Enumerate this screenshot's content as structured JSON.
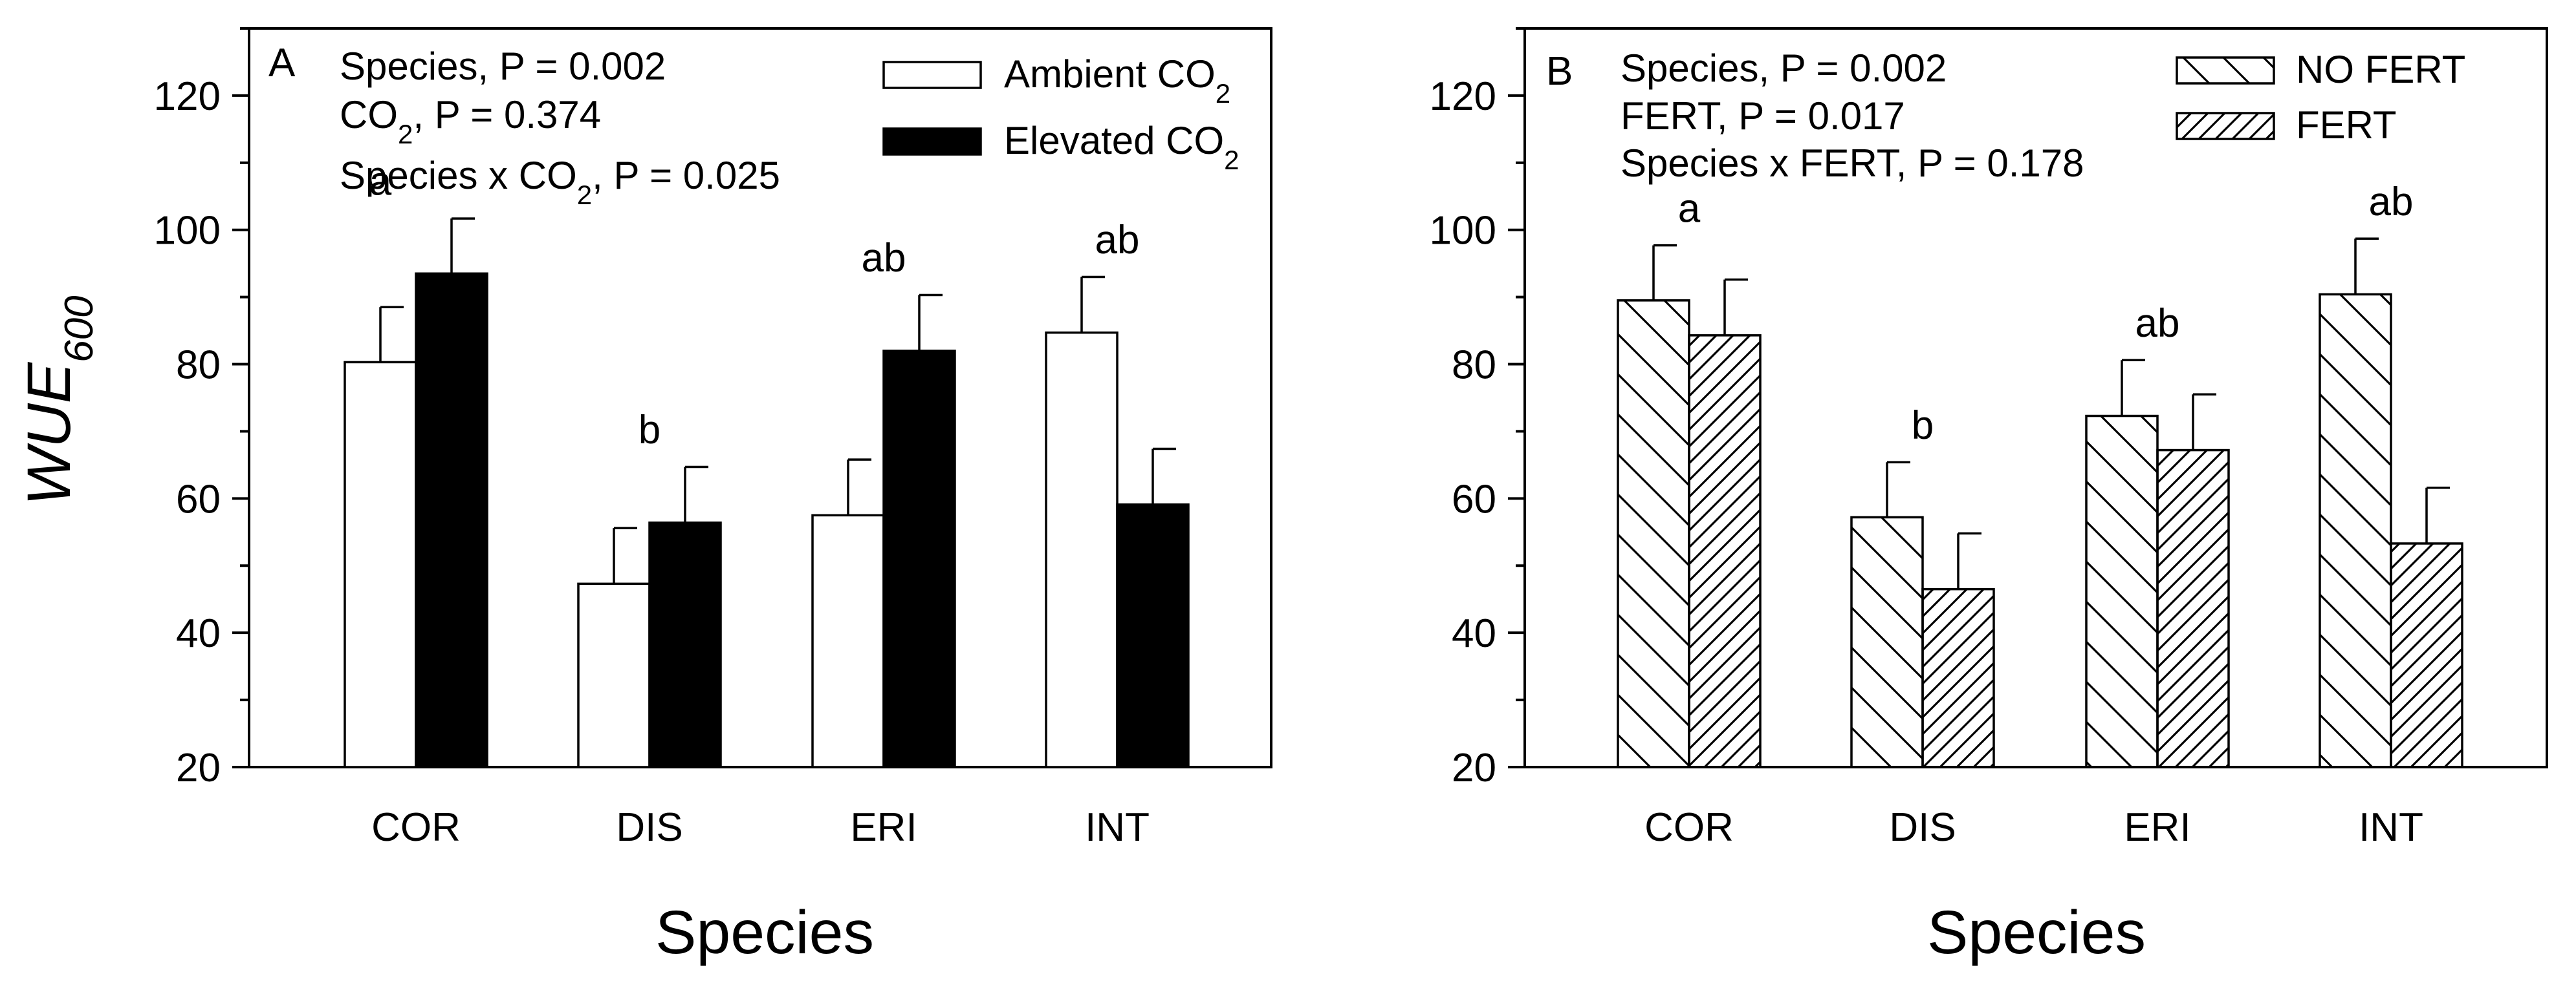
{
  "chart_data": [
    {
      "type": "bar",
      "panel_label": "A",
      "categories": [
        "COR",
        "DIS",
        "ERI",
        "INT"
      ],
      "series": [
        {
          "name": "Ambient CO2",
          "fill": "#ffffff",
          "pattern": "none",
          "values": [
            80.3,
            47.3,
            57.5,
            84.7
          ],
          "errors": [
            8.2,
            8.3,
            8.3,
            8.3
          ]
        },
        {
          "name": "Elevated CO2",
          "fill": "#000000",
          "pattern": "none",
          "values": [
            93.5,
            56.4,
            82.0,
            59.1
          ],
          "errors": [
            8.2,
            8.3,
            8.3,
            8.3
          ]
        }
      ],
      "sig_letters": [
        "a",
        "b",
        "ab",
        "ab"
      ],
      "stats": [
        "Species, P = 0.002",
        "CO2, P = 0.374",
        "Species x CO2, P = 0.025"
      ],
      "xlabel": "Species",
      "ylabel": "WUE600",
      "ylim": [
        20,
        130
      ],
      "yticks": [
        20,
        40,
        60,
        80,
        100,
        120
      ],
      "legend_placement": "top-right",
      "grid": false
    },
    {
      "type": "bar",
      "panel_label": "B",
      "categories": [
        "COR",
        "DIS",
        "ERI",
        "INT"
      ],
      "series": [
        {
          "name": "NO FERT",
          "fill": "#ffffff",
          "pattern": "back-diagonal",
          "values": [
            89.5,
            57.2,
            72.3,
            90.4
          ],
          "errors": [
            8.2,
            8.2,
            8.3,
            8.3
          ]
        },
        {
          "name": "FERT",
          "fill": "#ffffff",
          "pattern": "forward-diagonal",
          "values": [
            84.3,
            46.5,
            67.2,
            53.3
          ],
          "errors": [
            8.3,
            8.3,
            8.3,
            8.3
          ]
        }
      ],
      "sig_letters": [
        "a",
        "b",
        "ab",
        "ab"
      ],
      "stats": [
        "Species, P = 0.002",
        "FERT, P = 0.017",
        "Species x FERT, P = 0.178"
      ],
      "xlabel": "Species",
      "ylabel": "",
      "ylim": [
        20,
        130
      ],
      "yticks": [
        20,
        40,
        60,
        80,
        100,
        120
      ],
      "legend_placement": "top-right",
      "grid": false
    }
  ]
}
